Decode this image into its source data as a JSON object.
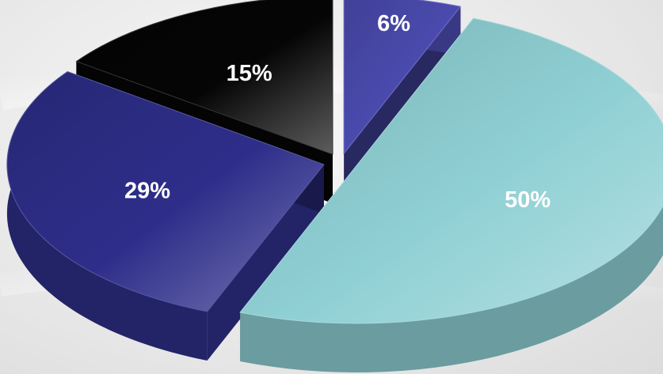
{
  "chart_data": {
    "type": "pie",
    "title": "",
    "style": "3d-exploded",
    "slices": [
      {
        "label": "6%",
        "value": 6,
        "color": "#4b4bb0"
      },
      {
        "label": "50%",
        "value": 50,
        "color": "#8fd0d4"
      },
      {
        "label": "29%",
        "value": 29,
        "color": "#2e2e8a"
      },
      {
        "label": "15%",
        "value": 15,
        "color": "#050505"
      }
    ]
  }
}
